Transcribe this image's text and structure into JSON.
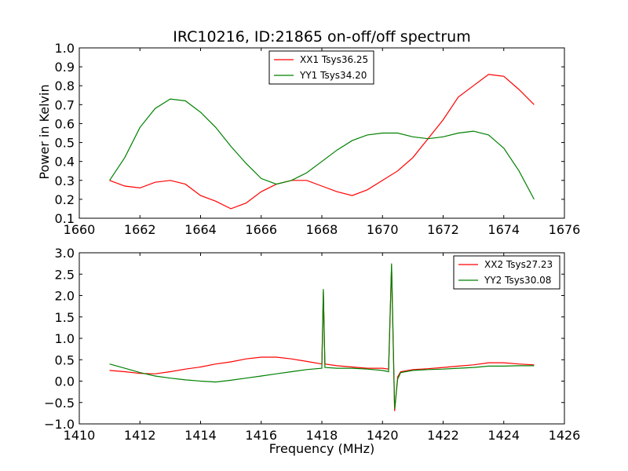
{
  "chart_data": [
    {
      "type": "line",
      "title": "IRC10216, ID:21865 on-off/off spectrum",
      "xlabel": "",
      "ylabel": "Power in Kelvin",
      "xlim": [
        1660,
        1676
      ],
      "ylim": [
        0.1,
        1.0
      ],
      "xticks": [
        1660,
        1662,
        1664,
        1666,
        1668,
        1670,
        1672,
        1674,
        1676
      ],
      "xtick_labels": [
        "1660",
        "1662",
        "1664",
        "1666",
        "1668",
        "1670",
        "1672",
        "1674",
        "1676"
      ],
      "yticks": [
        0.1,
        0.2,
        0.3,
        0.4,
        0.5,
        0.6,
        0.7,
        0.8,
        0.9,
        1.0
      ],
      "ytick_labels": [
        "0.1",
        "0.2",
        "0.3",
        "0.4",
        "0.5",
        "0.6",
        "0.7",
        "0.8",
        "0.9",
        "1.0"
      ],
      "legend_position": "top-center",
      "grid": false,
      "series": [
        {
          "name": "XX1 Tsys36.25",
          "color": "#ff0000",
          "x": [
            1661.0,
            1661.5,
            1662.0,
            1662.5,
            1663.0,
            1663.5,
            1664.0,
            1664.5,
            1665.0,
            1665.5,
            1666.0,
            1666.5,
            1667.0,
            1667.5,
            1668.0,
            1668.5,
            1669.0,
            1669.5,
            1670.0,
            1670.5,
            1671.0,
            1671.5,
            1672.0,
            1672.5,
            1673.0,
            1673.5,
            1674.0,
            1674.5,
            1675.0
          ],
          "y": [
            0.3,
            0.27,
            0.26,
            0.29,
            0.3,
            0.28,
            0.22,
            0.19,
            0.15,
            0.18,
            0.24,
            0.28,
            0.3,
            0.3,
            0.27,
            0.24,
            0.22,
            0.25,
            0.3,
            0.35,
            0.42,
            0.52,
            0.62,
            0.74,
            0.8,
            0.86,
            0.85,
            0.78,
            0.7
          ]
        },
        {
          "name": "YY1 Tsys34.20",
          "color": "#008000",
          "x": [
            1661.0,
            1661.5,
            1662.0,
            1662.5,
            1663.0,
            1663.5,
            1664.0,
            1664.5,
            1665.0,
            1665.5,
            1666.0,
            1666.5,
            1667.0,
            1667.5,
            1668.0,
            1668.5,
            1669.0,
            1669.5,
            1670.0,
            1670.5,
            1671.0,
            1671.5,
            1672.0,
            1672.5,
            1673.0,
            1673.5,
            1674.0,
            1674.5,
            1675.0
          ],
          "y": [
            0.3,
            0.42,
            0.58,
            0.68,
            0.73,
            0.72,
            0.66,
            0.58,
            0.48,
            0.39,
            0.31,
            0.28,
            0.3,
            0.34,
            0.4,
            0.46,
            0.51,
            0.54,
            0.55,
            0.55,
            0.53,
            0.52,
            0.53,
            0.55,
            0.56,
            0.54,
            0.47,
            0.35,
            0.2
          ]
        }
      ]
    },
    {
      "type": "line",
      "title": "",
      "xlabel": "Frequency (MHz)",
      "ylabel": "",
      "xlim": [
        1410,
        1426
      ],
      "ylim": [
        -1.0,
        3.0
      ],
      "xticks": [
        1410,
        1412,
        1414,
        1416,
        1418,
        1420,
        1422,
        1424,
        1426
      ],
      "xtick_labels": [
        "1410",
        "1412",
        "1414",
        "1416",
        "1418",
        "1420",
        "1422",
        "1424",
        "1426"
      ],
      "yticks": [
        -1.0,
        -0.5,
        0.0,
        0.5,
        1.0,
        1.5,
        2.0,
        2.5,
        3.0
      ],
      "ytick_labels": [
        "−1.0",
        "−0.5",
        "0.0",
        "0.5",
        "1.0",
        "1.5",
        "2.0",
        "2.5",
        "3.0"
      ],
      "legend_position": "top-right",
      "grid": false,
      "series": [
        {
          "name": "XX2 Tsys27.23",
          "color": "#ff0000",
          "x": [
            1411.0,
            1411.5,
            1412.0,
            1412.5,
            1413.0,
            1413.5,
            1414.0,
            1414.5,
            1415.0,
            1415.5,
            1416.0,
            1416.5,
            1417.0,
            1417.5,
            1418.0,
            1418.05,
            1418.1,
            1418.5,
            1419.0,
            1419.5,
            1420.0,
            1420.2,
            1420.3,
            1420.4,
            1420.5,
            1420.6,
            1421.0,
            1421.5,
            1422.0,
            1422.5,
            1423.0,
            1423.5,
            1424.0,
            1424.5,
            1425.0
          ],
          "y": [
            0.25,
            0.22,
            0.18,
            0.17,
            0.22,
            0.28,
            0.33,
            0.4,
            0.45,
            0.52,
            0.56,
            0.56,
            0.52,
            0.46,
            0.4,
            2.1,
            0.4,
            0.36,
            0.33,
            0.3,
            0.3,
            0.28,
            2.7,
            -0.7,
            0.1,
            0.22,
            0.27,
            0.29,
            0.32,
            0.35,
            0.38,
            0.43,
            0.43,
            0.4,
            0.38
          ]
        },
        {
          "name": "YY2 Tsys30.08",
          "color": "#008000",
          "x": [
            1411.0,
            1411.5,
            1412.0,
            1412.5,
            1413.0,
            1413.5,
            1414.0,
            1414.5,
            1415.0,
            1415.5,
            1416.0,
            1416.5,
            1417.0,
            1417.5,
            1418.0,
            1418.05,
            1418.1,
            1418.5,
            1419.0,
            1419.5,
            1420.0,
            1420.2,
            1420.3,
            1420.4,
            1420.5,
            1420.6,
            1421.0,
            1421.5,
            1422.0,
            1422.5,
            1423.0,
            1423.5,
            1424.0,
            1424.5,
            1425.0
          ],
          "y": [
            0.4,
            0.3,
            0.2,
            0.12,
            0.07,
            0.03,
            0.0,
            -0.02,
            0.02,
            0.07,
            0.12,
            0.17,
            0.22,
            0.27,
            0.3,
            2.15,
            0.32,
            0.3,
            0.3,
            0.28,
            0.25,
            0.22,
            2.75,
            -0.65,
            0.05,
            0.2,
            0.25,
            0.27,
            0.28,
            0.3,
            0.32,
            0.35,
            0.35,
            0.36,
            0.36
          ]
        }
      ]
    }
  ]
}
